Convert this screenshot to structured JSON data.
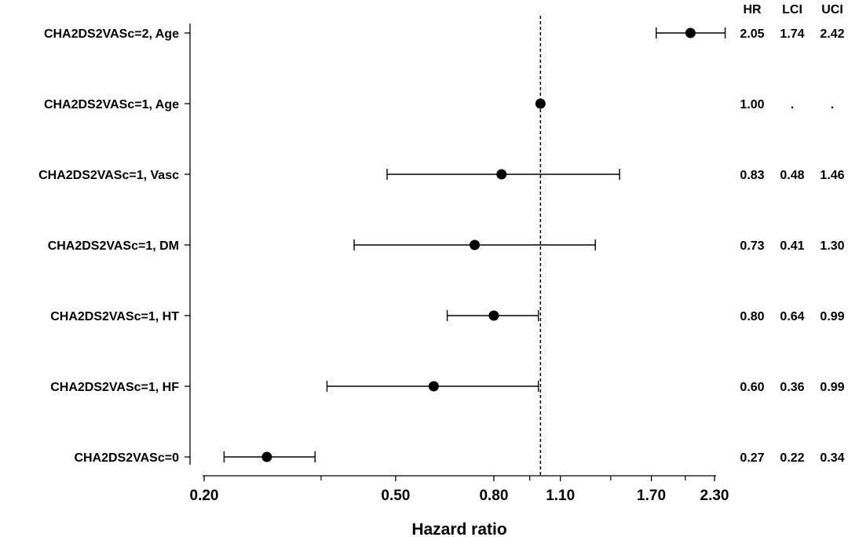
{
  "chart_data": {
    "type": "forest",
    "xlabel": "Hazard ratio",
    "x_scale": "log",
    "xlim": [
      0.18,
      2.5
    ],
    "x_ticks": [
      "0.20",
      "0.50",
      "0.80",
      "1.10",
      "1.70",
      "2.30"
    ],
    "x_minor_ticks": [
      0.35,
      0.95,
      1.4,
      2.0
    ],
    "reference_line": 1.0,
    "table_headers": [
      "HR",
      "LCI",
      "UCI"
    ],
    "rows": [
      {
        "label": "CHA2DS2VASc=2, Age",
        "hr": 2.05,
        "lci": 1.74,
        "uci": 2.42,
        "hr_text": "2.05",
        "lci_text": "1.74",
        "uci_text": "2.42"
      },
      {
        "label": "CHA2DS2VASc=1, Age",
        "hr": 1.0,
        "lci": null,
        "uci": null,
        "hr_text": "1.00",
        "lci_text": ".",
        "uci_text": "."
      },
      {
        "label": "CHA2DS2VASc=1, Vasc",
        "hr": 0.83,
        "lci": 0.48,
        "uci": 1.46,
        "hr_text": "0.83",
        "lci_text": "0.48",
        "uci_text": "1.46"
      },
      {
        "label": "CHA2DS2VASc=1, DM",
        "hr": 0.73,
        "lci": 0.41,
        "uci": 1.3,
        "hr_text": "0.73",
        "lci_text": "0.41",
        "uci_text": "1.30"
      },
      {
        "label": "CHA2DS2VASc=1, HT",
        "hr": 0.8,
        "lci": 0.64,
        "uci": 0.99,
        "hr_text": "0.80",
        "lci_text": "0.64",
        "uci_text": "0.99"
      },
      {
        "label": "CHA2DS2VASc=1, HF",
        "hr": 0.6,
        "lci": 0.36,
        "uci": 0.99,
        "hr_text": "0.60",
        "lci_text": "0.36",
        "uci_text": "0.99"
      },
      {
        "label": "CHA2DS2VASc=0",
        "hr": 0.27,
        "lci": 0.22,
        "uci": 0.34,
        "hr_text": "0.27",
        "lci_text": "0.22",
        "uci_text": "0.34"
      }
    ]
  }
}
